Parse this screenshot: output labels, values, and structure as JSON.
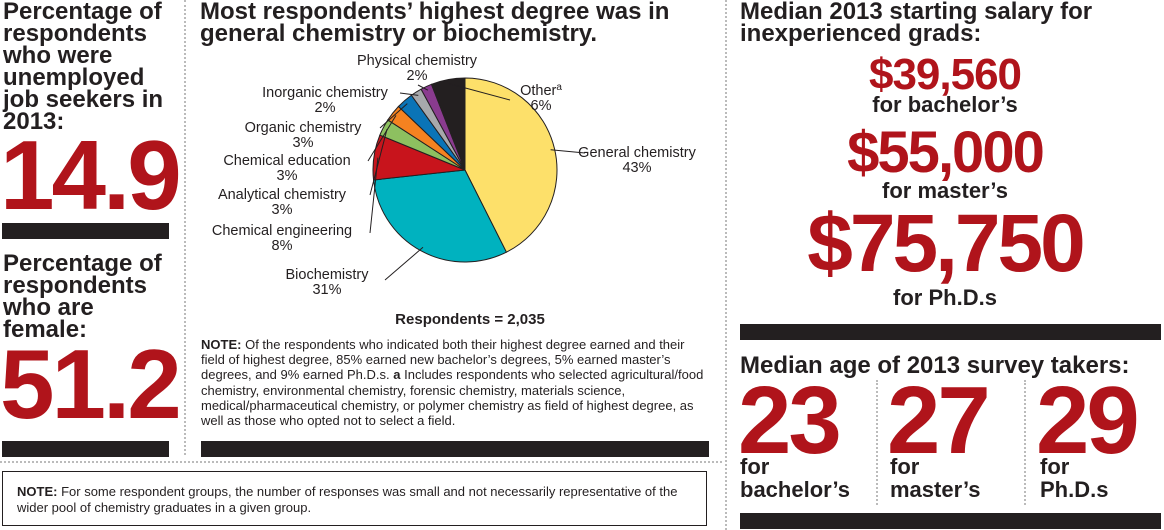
{
  "left": {
    "unemployed": {
      "label": "Percentage of respondents who were unemployed job seekers in 2013:",
      "value": "14.9"
    },
    "female": {
      "label": "Percentage of respondents who are female:",
      "value": "51.2"
    }
  },
  "chart_data": {
    "type": "pie",
    "title": "Most respondents’ highest degree was in general chemistry or biochemistry.",
    "slices": [
      {
        "label": "General chemistry",
        "pct_label": "43%",
        "value": 43,
        "color": "#fde06a"
      },
      {
        "label": "Biochemistry",
        "pct_label": "31%",
        "value": 31,
        "color": "#00b2bf"
      },
      {
        "label": "Chemical engineering",
        "pct_label": "8%",
        "value": 8,
        "color": "#c8141c"
      },
      {
        "label": "Analytical chemistry",
        "pct_label": "3%",
        "value": 3,
        "color": "#8dc060"
      },
      {
        "label": "Chemical education",
        "pct_label": "3%",
        "value": 3,
        "color": "#f58220"
      },
      {
        "label": "Organic chemistry",
        "pct_label": "3%",
        "value": 3,
        "color": "#0a74b7"
      },
      {
        "label": "Inorganic chemistry",
        "pct_label": "2%",
        "value": 2,
        "color": "#a7a9ac"
      },
      {
        "label": "Physical chemistry",
        "pct_label": "2%",
        "value": 2,
        "color": "#8a3b8f"
      },
      {
        "label": "Other",
        "label_sup": "a",
        "pct_label": "6%",
        "value": 6,
        "color": "#231f20"
      }
    ],
    "respondents_label": "Respondents = 2,035"
  },
  "note_top": {
    "lead": "NOTE:",
    "text1": "Of the respondents who indicated both their highest degree earned and their field of highest degree, 85% earned new bachelor’s degrees, 5% earned master’s degrees, and 9% earned Ph.D.s.",
    "marker": "a",
    "text2": "Includes respondents who selected agricultural/food chemistry, environmental chemistry, forensic chemistry, materials science, medical/pharmaceutical chemistry, or polymer chemistry as field of highest degree, as well as those who opted not to select a field."
  },
  "note_bottom": {
    "lead": "NOTE:",
    "text": "For some respondent groups, the number of responses was small and not necessarily representative of the wider pool of chemistry graduates in a given group."
  },
  "salary": {
    "title": "Median 2013 starting salary for inexperienced grads:",
    "bachelor": {
      "value": "$39,560",
      "label": "for bachelor’s"
    },
    "master": {
      "value": "$55,000",
      "label": "for master’s"
    },
    "phd": {
      "value": "$75,750",
      "label": "for Ph.D.s"
    }
  },
  "age": {
    "title": "Median age of 2013 survey takers:",
    "items": [
      {
        "value": "23",
        "label_1": "for",
        "label_2": "bachelor’s"
      },
      {
        "value": "27",
        "label_1": "for",
        "label_2": "master’s"
      },
      {
        "value": "29",
        "label_1": "for",
        "label_2": "Ph.D.s"
      }
    ]
  },
  "colors": {
    "accent_red": "#b0141b",
    "rule_black": "#231f20"
  }
}
